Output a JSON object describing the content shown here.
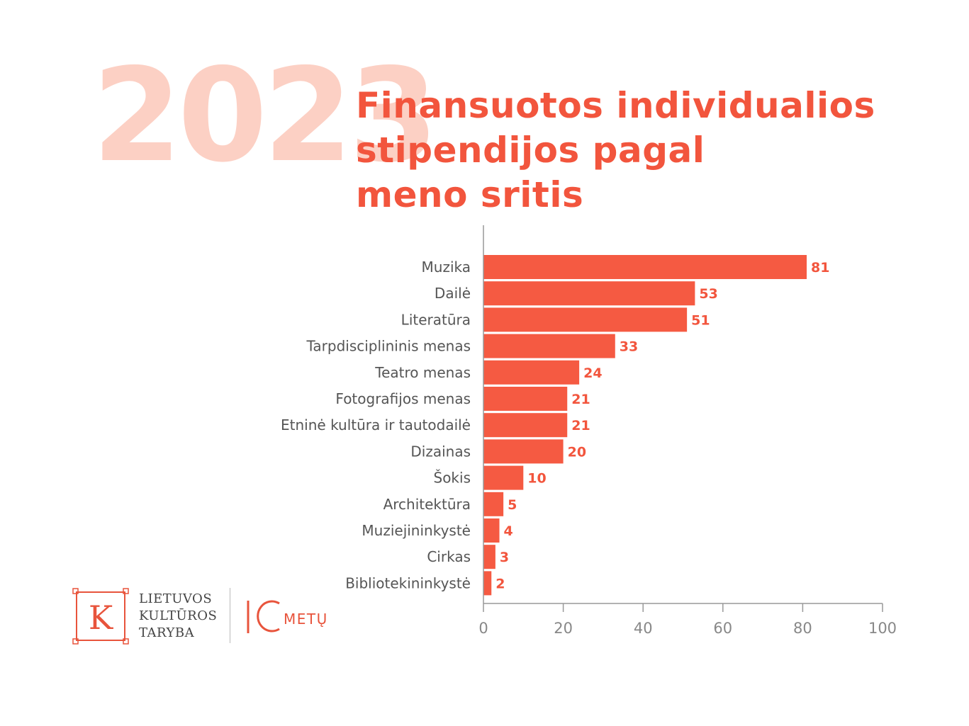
{
  "year": "2023",
  "title_lines": [
    "Finansuotos individualios",
    "stipendijos pagal",
    "meno sritis"
  ],
  "chart_data": {
    "type": "bar",
    "orientation": "horizontal",
    "categories": [
      "Muzika",
      "Dailė",
      "Literatūra",
      "Tarpdisciplininis menas",
      "Teatro menas",
      "Fotografijos menas",
      "Etninė kultūra ir tautodailė",
      "Dizainas",
      "Šokis",
      "Architektūra",
      "Muziejininkystė",
      "Cirkas",
      "Bibliotekininkystė"
    ],
    "values": [
      81,
      53,
      51,
      33,
      24,
      21,
      21,
      20,
      10,
      5,
      4,
      3,
      2
    ],
    "value_labels": [
      "81",
      "53",
      "51",
      "33",
      "24",
      "21",
      "21",
      "20",
      "10",
      "5",
      "4",
      "3",
      "2"
    ],
    "xlim": [
      0,
      100
    ],
    "xticks": [
      0,
      20,
      40,
      60,
      80,
      100
    ],
    "xtick_labels": [
      "0",
      "20",
      "40",
      "60",
      "80",
      "100"
    ],
    "bar_color": "#f55a42",
    "grid": false
  },
  "logo": {
    "letter": "K",
    "org_lines": [
      "LIETUVOS",
      "KULTŪROS",
      "TARYBA"
    ],
    "years_text": "METŲ",
    "accent": "#e8543c"
  }
}
